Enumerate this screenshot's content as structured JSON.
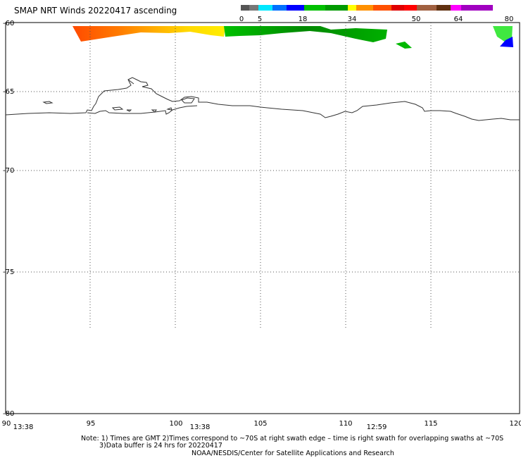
{
  "title": "SMAP NRT Winds 20220417 ascending",
  "colorbar": {
    "labels": [
      "0",
      "5",
      "18",
      "34",
      "50",
      "64",
      "80"
    ],
    "colors": [
      "#555555",
      "#777777",
      "#00e8ff",
      "#0070ff",
      "#0000ff",
      "#00c000",
      "#009a00",
      "#ffff00",
      "#ff9000",
      "#ff5000",
      "#e00000",
      "#ff0000",
      "#a06040",
      "#603010",
      "#ff00ff",
      "#a000c0"
    ]
  },
  "map": {
    "lat_labels": [
      "-60",
      "-65",
      "-70",
      "-75",
      "-80"
    ],
    "lon_labels": [
      "90",
      "95",
      "100",
      "105",
      "110",
      "115",
      "120"
    ],
    "swath_times": [
      "13:38",
      "13:38",
      "12:59"
    ],
    "swath_colors": {
      "orange_red": "#ff5000",
      "yellow": "#ffee00",
      "green": "#00b800",
      "dark_green": "#007800",
      "lime": "#40e840",
      "blue": "#0000ff"
    },
    "coastline_color": "#333333",
    "grid": true
  },
  "notes": {
    "line1": "Note: 1) Times are GMT 2)Times correspond to ~70S at right swath edge – time is right swath for overlapping swaths at ~70S",
    "line2": "3)Data buffer is 24 hrs for 20220417",
    "line3": "NOAA/NESDIS/Center for Satellite Applications and Research"
  }
}
